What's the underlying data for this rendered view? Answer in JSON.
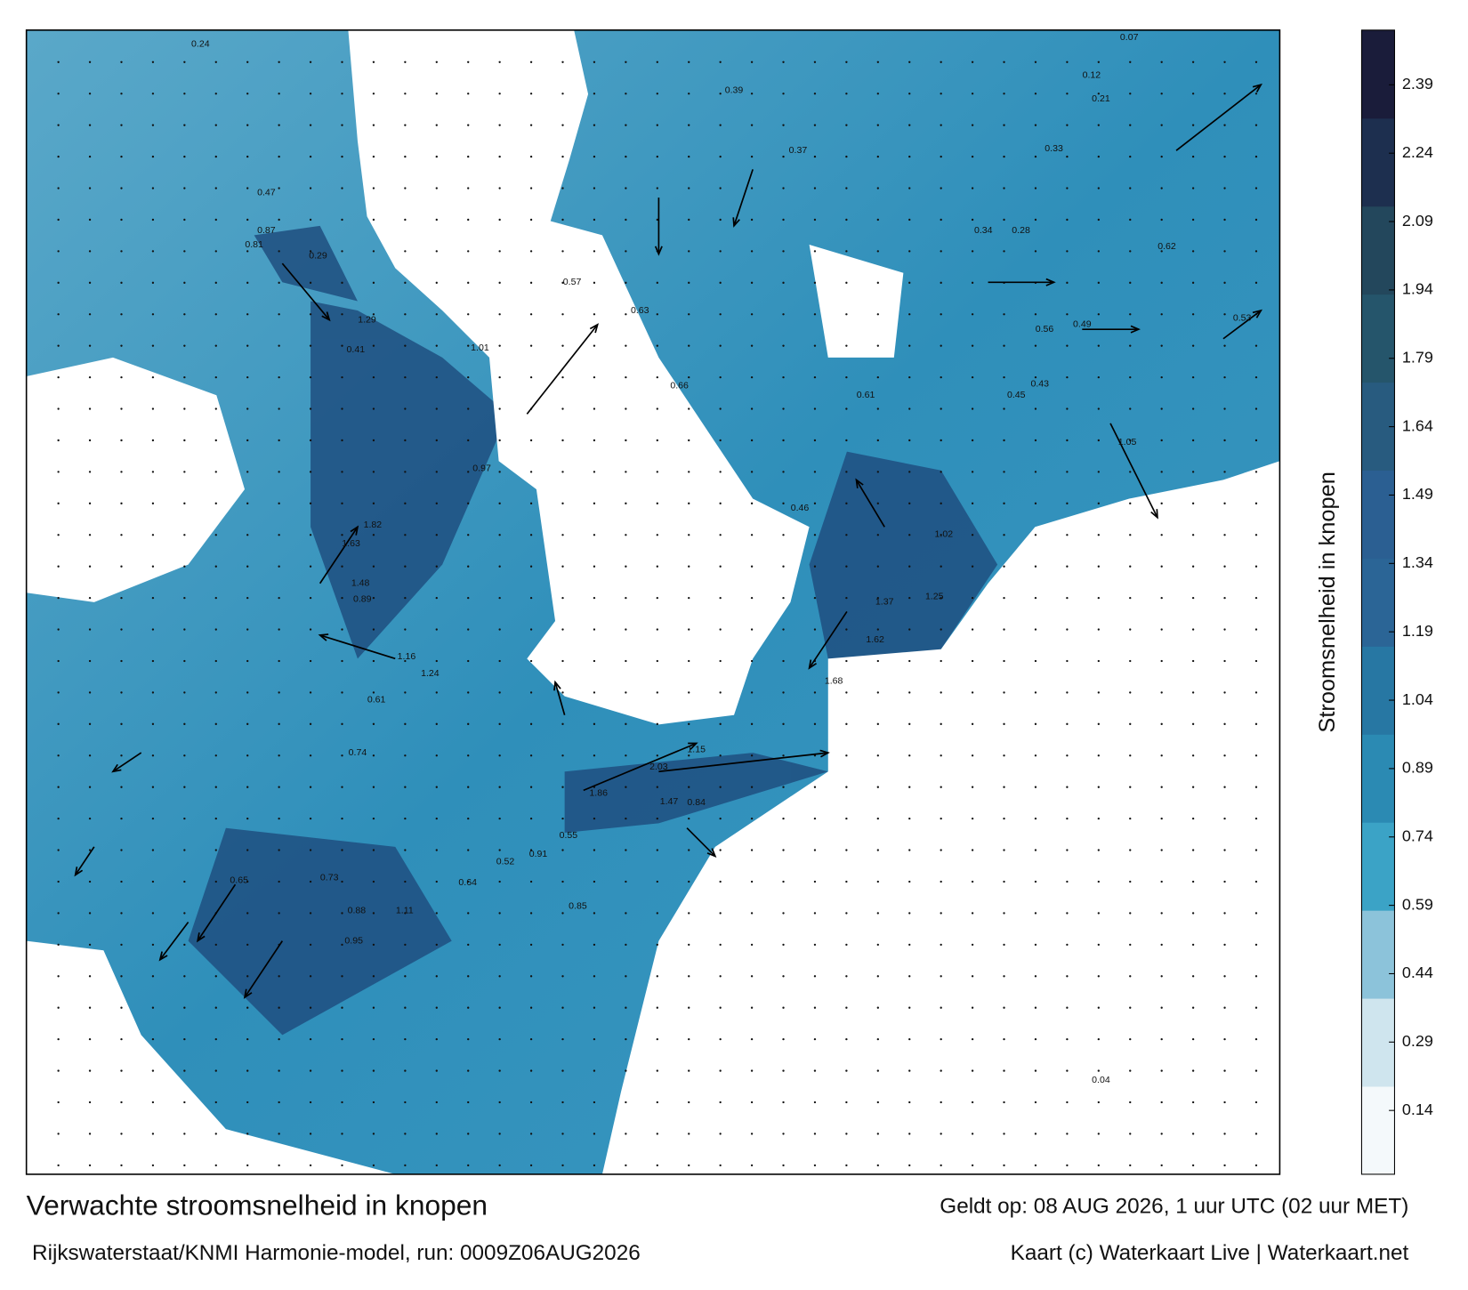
{
  "title": "Verwachte stroomsnelheid in knopen",
  "subtitle": "Rijkswaterstaat/KNMI Harmonie-model, run: 0009Z06AUG2026",
  "valid_time": "Geldt op: 08 AUG 2026, 1 uur UTC (02 uur MET)",
  "credit": "Kaart (c) Waterkaart Live | Waterkaart.net",
  "colorbar": {
    "label": "Stroomsnelheid in knopen",
    "lim": [
      0,
      2.51
    ],
    "ticks": [
      0.14,
      0.29,
      0.44,
      0.59,
      0.74,
      0.89,
      1.04,
      1.19,
      1.34,
      1.49,
      1.64,
      1.79,
      1.94,
      2.09,
      2.24,
      2.39
    ],
    "colors": [
      "#f4f9fb",
      "#cfe5ee",
      "#8cc3da",
      "#3ba3c6",
      "#2b8ab3",
      "#2777a3",
      "#2b6596",
      "#2b5f92",
      "#285b7f",
      "#25556b",
      "#23475c",
      "#1d2f4f",
      "#1a1c3a"
    ]
  },
  "speed_labels": [
    0.24,
    0.81,
    0.87,
    0.47,
    0.29,
    1.29,
    0.41,
    1.01,
    0.97,
    1.82,
    1.63,
    1.48,
    1.16,
    1.24,
    0.61,
    0.89,
    0.74,
    0.52,
    0.65,
    0.73,
    0.88,
    0.95,
    1.11,
    0.64,
    0.57,
    0.63,
    0.66,
    0.91,
    0.55,
    0.39,
    0.53,
    0.46,
    0.61,
    0.37,
    0.85,
    1.05,
    1.02,
    1.25,
    1.37,
    1.62,
    1.68,
    1.86,
    2.03,
    1.47,
    1.15,
    0.84,
    0.34,
    0.28,
    0.43,
    0.49,
    0.56,
    0.62,
    0.45,
    0.33,
    0.21,
    0.12,
    0.07,
    0.04
  ]
}
